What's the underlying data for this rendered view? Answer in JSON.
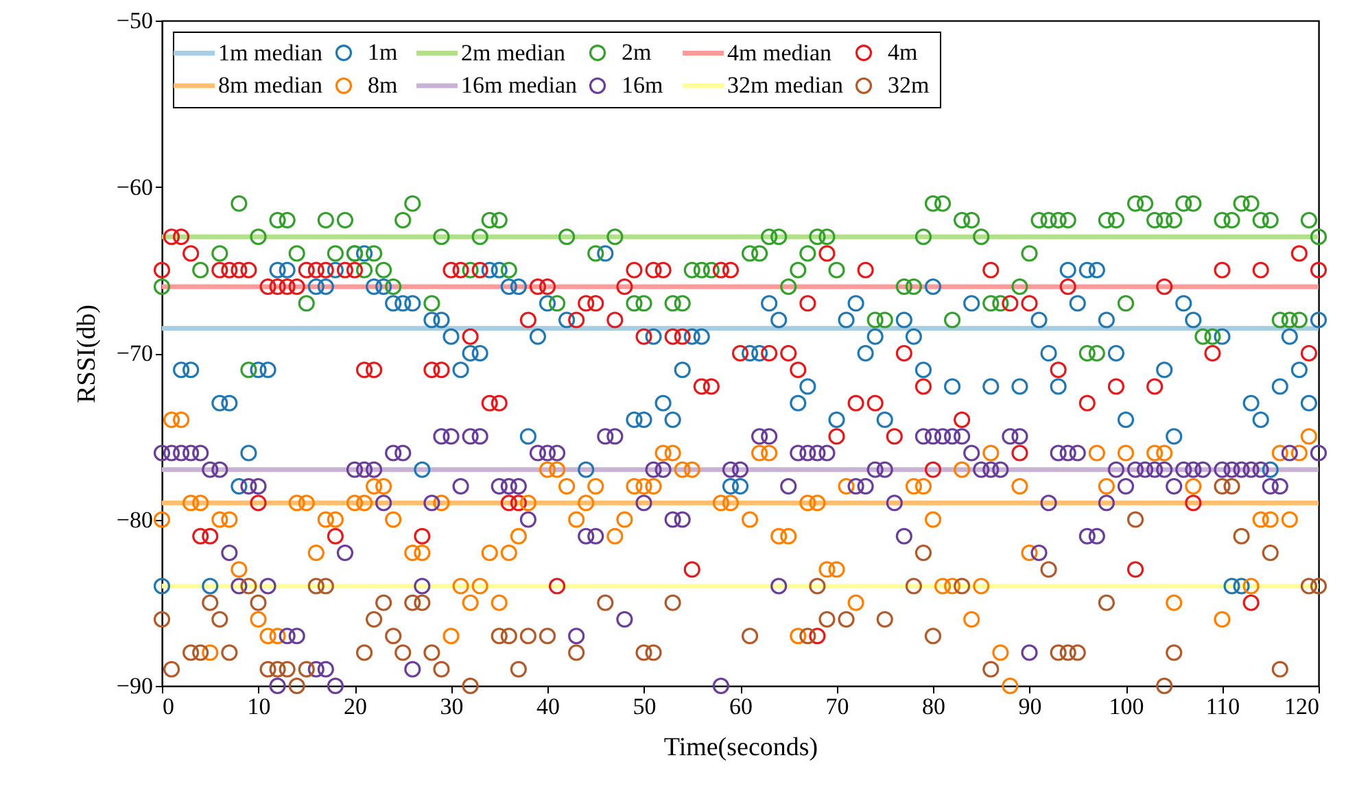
{
  "chart_data": {
    "type": "scatter",
    "xlabel": "Time(seconds)",
    "ylabel": "RSSI(db)",
    "xlim": [
      0,
      120
    ],
    "ylim": [
      -90,
      -50
    ],
    "xticks": [
      0,
      10,
      20,
      30,
      40,
      50,
      60,
      70,
      80,
      90,
      100,
      110,
      120
    ],
    "yticks": [
      -90,
      -80,
      -70,
      -60,
      -50
    ],
    "grid": false,
    "legend": "top left",
    "marker": "circle",
    "series": [
      {
        "name": "1m median",
        "type": "line",
        "marker": "none",
        "color": "#a6cee3",
        "x": [
          0,
          120
        ],
        "values": [
          -68.5,
          -68.5
        ]
      },
      {
        "name": "1m",
        "color": "#1f78b4",
        "x": [
          0,
          2,
          3,
          5,
          6,
          7,
          8,
          9,
          10,
          11,
          12,
          13,
          16,
          17,
          18,
          20,
          21,
          22,
          23,
          24,
          25,
          26,
          27,
          28,
          29,
          30,
          31,
          32,
          33,
          34,
          35,
          36,
          37,
          38,
          39,
          40,
          42,
          44,
          46,
          49,
          50,
          51,
          52,
          53,
          54,
          55,
          56,
          59,
          60,
          61,
          62,
          63,
          64,
          66,
          67,
          70,
          71,
          72,
          73,
          74,
          75,
          77,
          78,
          79,
          80,
          82,
          84,
          86,
          89,
          91,
          92,
          93,
          94,
          95,
          96,
          97,
          98,
          99,
          100,
          104,
          105,
          106,
          107,
          110,
          111,
          112,
          113,
          114,
          115,
          116,
          117,
          118,
          119,
          120
        ],
        "values": [
          -84,
          -71,
          -71,
          -84,
          -73,
          -73,
          -78,
          -76,
          -71,
          -71,
          -65,
          -65,
          -66,
          -66,
          -65,
          -64,
          -64,
          -66,
          -66,
          -67,
          -67,
          -67,
          -77,
          -68,
          -68,
          -69,
          -71,
          -70,
          -70,
          -65,
          -65,
          -66,
          -66,
          -75,
          -69,
          -67,
          -68,
          -77,
          -64,
          -74,
          -74,
          -69,
          -73,
          -74,
          -71,
          -69,
          -69,
          -78,
          -78,
          -70,
          -70,
          -67,
          -68,
          -73,
          -72,
          -74,
          -68,
          -67,
          -70,
          -69,
          -74,
          -68,
          -69,
          -71,
          -66,
          -72,
          -67,
          -72,
          -72,
          -68,
          -70,
          -72,
          -65,
          -67,
          -65,
          -65,
          -68,
          -70,
          -74,
          -71,
          -75,
          -67,
          -68,
          -69,
          -84,
          -84,
          -73,
          -74,
          -77,
          -72,
          -69,
          -71,
          -73,
          -68
        ]
      },
      {
        "name": "2m median",
        "type": "line",
        "marker": "none",
        "color": "#b2df8a",
        "x": [
          0,
          120
        ],
        "values": [
          -63,
          -63
        ]
      },
      {
        "name": "2m",
        "color": "#33a02c",
        "x": [
          0,
          4,
          6,
          8,
          9,
          10,
          12,
          13,
          14,
          15,
          17,
          18,
          19,
          20,
          21,
          22,
          23,
          24,
          25,
          26,
          28,
          29,
          32,
          33,
          34,
          35,
          36,
          41,
          42,
          45,
          47,
          49,
          50,
          53,
          54,
          55,
          56,
          57,
          61,
          62,
          63,
          64,
          65,
          66,
          67,
          68,
          69,
          70,
          74,
          75,
          77,
          78,
          79,
          80,
          81,
          82,
          83,
          84,
          85,
          86,
          87,
          89,
          90,
          91,
          92,
          93,
          94,
          96,
          97,
          98,
          99,
          100,
          101,
          102,
          103,
          104,
          105,
          106,
          107,
          108,
          109,
          110,
          111,
          112,
          113,
          114,
          115,
          116,
          117,
          118,
          119,
          120
        ],
        "values": [
          -66,
          -65,
          -64,
          -61,
          -71,
          -63,
          -62,
          -62,
          -64,
          -67,
          -62,
          -64,
          -62,
          -64,
          -65,
          -64,
          -65,
          -66,
          -62,
          -61,
          -67,
          -63,
          -65,
          -63,
          -62,
          -62,
          -65,
          -67,
          -63,
          -64,
          -63,
          -67,
          -67,
          -67,
          -67,
          -65,
          -65,
          -65,
          -64,
          -64,
          -63,
          -63,
          -66,
          -65,
          -64,
          -63,
          -63,
          -65,
          -68,
          -68,
          -66,
          -66,
          -63,
          -61,
          -61,
          -68,
          -62,
          -62,
          -63,
          -67,
          -67,
          -66,
          -64,
          -62,
          -62,
          -62,
          -62,
          -70,
          -70,
          -62,
          -62,
          -67,
          -61,
          -61,
          -62,
          -62,
          -62,
          -61,
          -61,
          -69,
          -69,
          -62,
          -62,
          -61,
          -61,
          -62,
          -62,
          -68,
          -68,
          -68,
          -62,
          -63
        ]
      },
      {
        "name": "4m median",
        "type": "line",
        "marker": "none",
        "color": "#fb9a99",
        "x": [
          0,
          120
        ],
        "values": [
          -66,
          -66
        ]
      },
      {
        "name": "4m",
        "color": "#e31a1c",
        "x": [
          0,
          1,
          2,
          3,
          4,
          5,
          6,
          7,
          8,
          9,
          10,
          11,
          12,
          13,
          14,
          15,
          16,
          17,
          18,
          19,
          20,
          21,
          22,
          27,
          28,
          29,
          30,
          31,
          32,
          33,
          34,
          35,
          36,
          37,
          38,
          39,
          40,
          41,
          43,
          44,
          45,
          47,
          48,
          49,
          50,
          51,
          52,
          53,
          54,
          55,
          56,
          57,
          58,
          59,
          60,
          63,
          65,
          66,
          67,
          68,
          69,
          70,
          72,
          73,
          74,
          76,
          77,
          79,
          80,
          83,
          86,
          88,
          89,
          90,
          93,
          94,
          96,
          99,
          101,
          103,
          104,
          107,
          109,
          110,
          113,
          114,
          118,
          119,
          120
        ],
        "values": [
          -65,
          -63,
          -63,
          -64,
          -81,
          -81,
          -65,
          -65,
          -65,
          -65,
          -79,
          -66,
          -66,
          -66,
          -66,
          -65,
          -65,
          -65,
          -81,
          -65,
          -65,
          -71,
          -71,
          -81,
          -71,
          -71,
          -65,
          -65,
          -69,
          -65,
          -73,
          -73,
          -79,
          -79,
          -68,
          -66,
          -66,
          -84,
          -68,
          -67,
          -67,
          -68,
          -66,
          -65,
          -69,
          -65,
          -65,
          -69,
          -69,
          -83,
          -72,
          -72,
          -65,
          -65,
          -70,
          -70,
          -70,
          -71,
          -67,
          -87,
          -64,
          -75,
          -73,
          -65,
          -73,
          -75,
          -70,
          -72,
          -77,
          -74,
          -65,
          -67,
          -76,
          -67,
          -71,
          -66,
          -73,
          -72,
          -83,
          -72,
          -66,
          -79,
          -70,
          -65,
          -85,
          -65,
          -64,
          -70,
          -65
        ]
      },
      {
        "name": "8m median",
        "type": "line",
        "marker": "none",
        "color": "#fdbf6f",
        "x": [
          0,
          120
        ],
        "values": [
          -79,
          -79
        ]
      },
      {
        "name": "8m",
        "color": "#ff7f00",
        "x": [
          0,
          1,
          2,
          3,
          4,
          5,
          6,
          7,
          8,
          10,
          11,
          12,
          14,
          15,
          16,
          17,
          18,
          20,
          21,
          22,
          23,
          24,
          26,
          27,
          29,
          30,
          31,
          32,
          33,
          34,
          35,
          36,
          37,
          38,
          40,
          41,
          42,
          43,
          44,
          45,
          47,
          48,
          49,
          50,
          51,
          52,
          53,
          54,
          55,
          58,
          59,
          61,
          62,
          63,
          64,
          65,
          66,
          67,
          68,
          69,
          70,
          71,
          72,
          78,
          79,
          80,
          81,
          82,
          83,
          84,
          85,
          86,
          87,
          88,
          89,
          90,
          97,
          98,
          100,
          103,
          104,
          105,
          107,
          110,
          113,
          114,
          115,
          116,
          117,
          118,
          119
        ],
        "values": [
          -80,
          -74,
          -74,
          -79,
          -79,
          -88,
          -80,
          -80,
          -83,
          -86,
          -87,
          -87,
          -79,
          -79,
          -82,
          -80,
          -80,
          -79,
          -79,
          -78,
          -78,
          -80,
          -82,
          -82,
          -79,
          -87,
          -84,
          -85,
          -84,
          -82,
          -85,
          -82,
          -81,
          -79,
          -77,
          -77,
          -78,
          -80,
          -79,
          -78,
          -81,
          -80,
          -78,
          -78,
          -78,
          -76,
          -76,
          -77,
          -77,
          -79,
          -79,
          -80,
          -76,
          -76,
          -81,
          -81,
          -87,
          -79,
          -79,
          -83,
          -83,
          -78,
          -85,
          -78,
          -78,
          -80,
          -84,
          -84,
          -77,
          -86,
          -84,
          -76,
          -88,
          -90,
          -78,
          -82,
          -76,
          -78,
          -76,
          -76,
          -76,
          -85,
          -78,
          -86,
          -84,
          -80,
          -80,
          -76,
          -80,
          -76,
          -75
        ]
      },
      {
        "name": "16m median",
        "type": "line",
        "marker": "none",
        "color": "#cab2d6",
        "x": [
          0,
          120
        ],
        "values": [
          -77,
          -77
        ]
      },
      {
        "name": "16m",
        "color": "#6a3d9a",
        "x": [
          0,
          1,
          2,
          3,
          4,
          5,
          6,
          7,
          8,
          9,
          10,
          11,
          12,
          13,
          14,
          16,
          17,
          18,
          19,
          20,
          21,
          22,
          23,
          24,
          25,
          26,
          27,
          28,
          29,
          30,
          31,
          32,
          33,
          35,
          36,
          37,
          38,
          39,
          40,
          41,
          43,
          44,
          45,
          46,
          47,
          48,
          50,
          51,
          52,
          53,
          54,
          58,
          59,
          60,
          62,
          63,
          64,
          65,
          66,
          67,
          68,
          69,
          72,
          73,
          74,
          75,
          76,
          77,
          79,
          80,
          81,
          82,
          83,
          84,
          85,
          86,
          87,
          88,
          89,
          90,
          91,
          92,
          93,
          94,
          95,
          96,
          97,
          98,
          99,
          100,
          101,
          102,
          103,
          104,
          105,
          106,
          107,
          108,
          110,
          111,
          112,
          113,
          114,
          115,
          116,
          117,
          120
        ],
        "values": [
          -76,
          -76,
          -76,
          -76,
          -76,
          -77,
          -77,
          -82,
          -84,
          -78,
          -78,
          -84,
          -90,
          -87,
          -87,
          -89,
          -89,
          -90,
          -82,
          -77,
          -77,
          -77,
          -79,
          -76,
          -76,
          -89,
          -84,
          -79,
          -75,
          -75,
          -78,
          -75,
          -75,
          -78,
          -78,
          -78,
          -80,
          -76,
          -76,
          -76,
          -87,
          -81,
          -81,
          -75,
          -75,
          -86,
          -79,
          -77,
          -77,
          -80,
          -80,
          -90,
          -77,
          -77,
          -75,
          -75,
          -84,
          -78,
          -76,
          -76,
          -76,
          -76,
          -78,
          -78,
          -77,
          -77,
          -79,
          -81,
          -75,
          -75,
          -75,
          -75,
          -75,
          -76,
          -77,
          -77,
          -77,
          -75,
          -75,
          -88,
          -82,
          -79,
          -76,
          -76,
          -76,
          -81,
          -81,
          -79,
          -77,
          -78,
          -77,
          -77,
          -77,
          -77,
          -78,
          -77,
          -77,
          -77,
          -77,
          -77,
          -77,
          -77,
          -77,
          -78,
          -78,
          -76,
          -76
        ]
      },
      {
        "name": "32m median",
        "type": "line",
        "marker": "none",
        "color": "#ffff99",
        "x": [
          0,
          120
        ],
        "values": [
          -84,
          -84
        ]
      },
      {
        "name": "32m",
        "color": "#b15928",
        "x": [
          0,
          1,
          3,
          4,
          5,
          6,
          7,
          9,
          10,
          11,
          12,
          13,
          14,
          15,
          16,
          17,
          21,
          22,
          23,
          24,
          25,
          26,
          27,
          28,
          29,
          32,
          35,
          36,
          37,
          38,
          40,
          43,
          46,
          50,
          51,
          53,
          61,
          67,
          68,
          69,
          71,
          75,
          78,
          79,
          80,
          83,
          86,
          92,
          93,
          94,
          95,
          98,
          101,
          104,
          105,
          110,
          111,
          112,
          115,
          116,
          119,
          120
        ],
        "values": [
          -86,
          -89,
          -88,
          -88,
          -85,
          -86,
          -88,
          -84,
          -85,
          -89,
          -89,
          -89,
          -90,
          -89,
          -84,
          -84,
          -88,
          -86,
          -85,
          -87,
          -88,
          -85,
          -85,
          -88,
          -89,
          -90,
          -87,
          -87,
          -89,
          -87,
          -87,
          -88,
          -85,
          -88,
          -88,
          -85,
          -87,
          -87,
          -84,
          -86,
          -86,
          -86,
          -84,
          -82,
          -87,
          -84,
          -89,
          -83,
          -88,
          -88,
          -88,
          -85,
          -80,
          -90,
          -88,
          -78,
          -78,
          -81,
          -82,
          -89,
          -84,
          -84
        ]
      }
    ]
  }
}
